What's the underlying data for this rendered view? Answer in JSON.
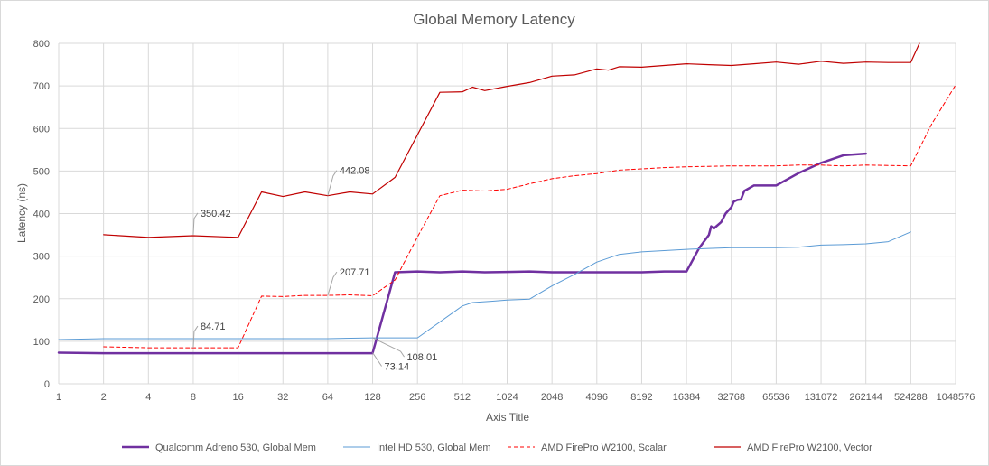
{
  "chart_data": {
    "type": "line",
    "title": "Global Memory Latency",
    "xlabel": "Axis Title",
    "ylabel": "Latency (ns)",
    "x_scale": "log2",
    "x_ticks": [
      1,
      2,
      4,
      8,
      16,
      32,
      64,
      128,
      256,
      512,
      1024,
      2048,
      4096,
      8192,
      16384,
      32768,
      65536,
      131072,
      262144,
      524288,
      1048576
    ],
    "x_tick_labels": [
      "1",
      "2",
      "4",
      "8",
      "16",
      "32",
      "64",
      "128",
      "256",
      "512",
      "1024",
      "2048",
      "4096",
      "8192",
      "16384",
      "32768",
      "65536",
      "131072",
      "262144",
      "524288",
      "1048576"
    ],
    "ylim": [
      0,
      800
    ],
    "y_ticks": [
      0,
      100,
      200,
      300,
      400,
      500,
      600,
      700,
      800
    ],
    "y_tick_labels": [
      "0",
      "100",
      "200",
      "300",
      "400",
      "500",
      "600",
      "700",
      "800"
    ],
    "grid": "vertical and horizontal",
    "legend_position": "bottom",
    "series": [
      {
        "name": "Qualcomm Adreno 530, Global Mem",
        "color": "#7030a0",
        "style": "solid-thick",
        "x": [
          1,
          2,
          4,
          8,
          16,
          32,
          64,
          128,
          181,
          256,
          362,
          512,
          724,
          1024,
          1448,
          2048,
          2896,
          4096,
          5793,
          8192,
          11585,
          16384,
          20000,
          23170,
          24000,
          25000,
          28000,
          30000,
          32768,
          34000,
          36000,
          38000,
          40000,
          46341,
          52000,
          65536,
          92682,
          131072,
          185364,
          262144
        ],
        "y": [
          73.14,
          72.0,
          72.0,
          72.0,
          72.0,
          72.0,
          72.0,
          72.0,
          262.0,
          264.0,
          262.0,
          264.0,
          262.0,
          263.0,
          264.0,
          262.0,
          262.0,
          262.0,
          262.0,
          262.0,
          264.0,
          264.0,
          320.0,
          350.0,
          370.0,
          365.0,
          380.0,
          400.0,
          415.0,
          428.0,
          432.0,
          433.0,
          453.0,
          466.0,
          466.0,
          466.0,
          495.0,
          519.0,
          537.0,
          541.0
        ]
      },
      {
        "name": "Intel HD 530, Global Mem",
        "color": "#5b9bd5",
        "style": "solid-thin",
        "x": [
          1,
          2,
          4,
          8,
          16,
          32,
          64,
          128,
          256,
          512,
          600,
          800,
          1024,
          1448,
          2048,
          2896,
          4096,
          5793,
          8192,
          11585,
          16384,
          23170,
          32768,
          46341,
          65536,
          92682,
          131072,
          185364,
          262144,
          370728,
          524288
        ],
        "y": [
          104.0,
          106.0,
          106.0,
          106.0,
          106.0,
          106.0,
          106.0,
          108.01,
          108.0,
          183.0,
          191.0,
          194.0,
          197.0,
          199.0,
          230.0,
          257.0,
          286.0,
          304.0,
          310.0,
          313.0,
          316.0,
          318.0,
          320.0,
          320.0,
          320.0,
          321.0,
          326.0,
          327.0,
          329.0,
          334.0,
          357.0
        ]
      },
      {
        "name": "AMD FirePro W2100, Scalar",
        "color": "#ff0000",
        "style": "dashed",
        "x": [
          2,
          4,
          8,
          16,
          23,
          32,
          45,
          64,
          90,
          128,
          181,
          256,
          362,
          512,
          724,
          1024,
          1448,
          2048,
          2896,
          4096,
          5793,
          8192,
          11585,
          16384,
          23170,
          32768,
          46341,
          65536,
          92682,
          131072,
          185364,
          262144,
          370728,
          524288,
          724077,
          1048576
        ],
        "y": [
          87.0,
          84.71,
          84.71,
          84.71,
          206.0,
          205.0,
          207.71,
          207.71,
          209.0,
          207.0,
          244.0,
          345.0,
          442.0,
          455.0,
          453.0,
          457.0,
          470.0,
          482.0,
          489.0,
          494.0,
          502.0,
          505.0,
          508.0,
          510.0,
          511.0,
          512.0,
          512.0,
          512.0,
          514.0,
          514.0,
          512.0,
          514.0,
          513.0,
          512.0,
          610.0,
          702.0
        ]
      },
      {
        "name": "AMD FirePro W2100, Vector",
        "color": "#c00000",
        "style": "solid",
        "x": [
          2,
          4,
          8,
          16,
          23,
          32,
          45,
          64,
          90,
          128,
          181,
          362,
          512,
          600,
          724,
          1024,
          1448,
          2048,
          2896,
          4096,
          4900,
          5793,
          8192,
          11585,
          16384,
          23170,
          32768,
          46341,
          65536,
          92682,
          131072,
          185364,
          262144,
          370728,
          524288,
          600000
        ],
        "y": [
          350.42,
          344.0,
          348.0,
          344.0,
          451.0,
          440.0,
          451.0,
          442.08,
          451.0,
          446.0,
          485.0,
          685.0,
          686.0,
          697.0,
          689.0,
          699.0,
          708.0,
          723.0,
          726.0,
          740.0,
          737.0,
          745.0,
          744.0,
          748.0,
          752.0,
          750.0,
          748.0,
          752.0,
          756.0,
          751.0,
          758.0,
          753.0,
          756.0,
          755.0,
          755.0,
          800.0
        ]
      }
    ],
    "annotations": [
      {
        "text": "350.42",
        "x": 8,
        "y": 350.42
      },
      {
        "text": "442.08",
        "x": 64,
        "y": 442.08
      },
      {
        "text": "207.71",
        "x": 64,
        "y": 207.71
      },
      {
        "text": "84.71",
        "x": 8,
        "y": 84.71
      },
      {
        "text": "73.14",
        "x": 128,
        "y": 73.14
      },
      {
        "text": "108.01",
        "x": 128,
        "y": 108.01
      }
    ]
  }
}
